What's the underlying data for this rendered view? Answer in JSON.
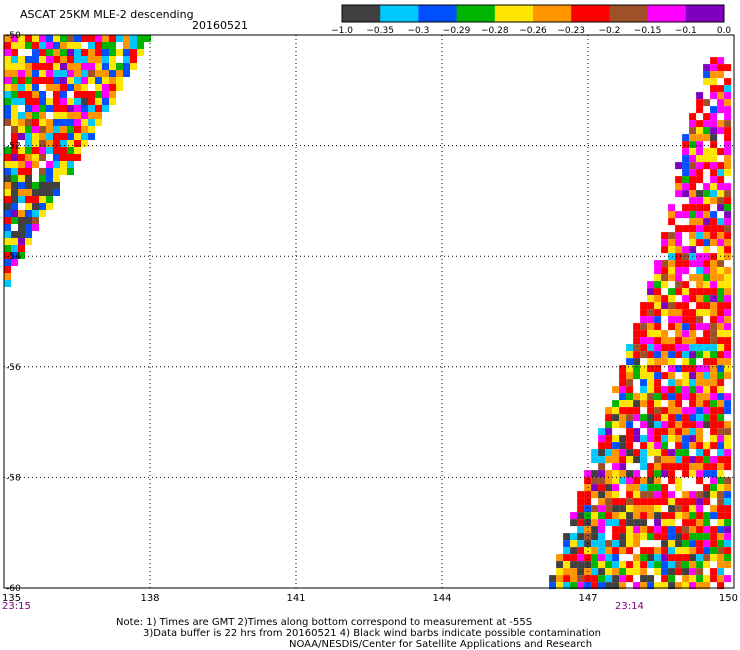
{
  "header": {
    "title": "ASCAT 25KM MLE-2 descending",
    "date": "20160521"
  },
  "legend": {
    "colors": [
      "#404040",
      "#00c8ff",
      "#0050ff",
      "#00b400",
      "#ffe600",
      "#ff9600",
      "#ff0000",
      "#a05028",
      "#ff00ff",
      "#8000c0"
    ],
    "labels": [
      "-1.0",
      "-0.35",
      "-0.3",
      "-0.29",
      "-0.28",
      "-0.26",
      "-0.23",
      "-0.2",
      "-0.15",
      "-0.1",
      "0.0"
    ]
  },
  "axes": {
    "lat_labels": [
      "-50",
      "-52",
      "-54",
      "-56",
      "-58",
      "-60"
    ],
    "lat_values": [
      -50,
      -52,
      -54,
      -56,
      -58,
      -60
    ],
    "lon_labels": [
      "135",
      "138",
      "141",
      "144",
      "147",
      "150"
    ],
    "lon_values": [
      135,
      138,
      141,
      144,
      147,
      150
    ]
  },
  "times": {
    "left": "23:15",
    "right": "23:14"
  },
  "notes": {
    "line1": "Note: 1) Times are GMT 2)Times along bottom correspond to measurement at -55S",
    "line2": "3)Data buffer is 22 hrs from 20160521 4) Black wind barbs indicate possible contamination",
    "line3": "NOAA/NESDIS/Center for Satellite Applications and Research"
  },
  "chart_data": {
    "type": "heatmap",
    "title": "ASCAT 25KM MLE-2 descending",
    "date": "20160521",
    "xlim": [
      135,
      150
    ],
    "ylim": [
      -60,
      -50
    ],
    "grid": true,
    "legend_position": "top-right",
    "color_scale": {
      "breaks": [
        -1.0,
        -0.35,
        -0.3,
        -0.29,
        -0.28,
        -0.26,
        -0.23,
        -0.2,
        -0.15,
        -0.1,
        0.0
      ],
      "colors": [
        "#404040",
        "#00c8ff",
        "#0050ff",
        "#00b400",
        "#ffe600",
        "#ff9600",
        "#ff0000",
        "#a05028",
        "#ff00ff",
        "#8000c0"
      ]
    },
    "swaths": [
      {
        "name": "west swath",
        "time": "23:15",
        "polygon_lonlat": [
          [
            135,
            -50
          ],
          [
            138.05,
            -50
          ],
          [
            135.15,
            -54.3
          ],
          [
            135.15,
            -54.55
          ],
          [
            135,
            -54.55
          ]
        ]
      },
      {
        "name": "east swath",
        "time": "23:14",
        "polygon_lonlat": [
          [
            149.5,
            -50.4
          ],
          [
            150,
            -50.4
          ],
          [
            150,
            -60
          ],
          [
            146.2,
            -60
          ],
          [
            147.4,
            -56.8
          ],
          [
            148.4,
            -54.2
          ],
          [
            149.0,
            -51.8
          ]
        ]
      }
    ]
  }
}
